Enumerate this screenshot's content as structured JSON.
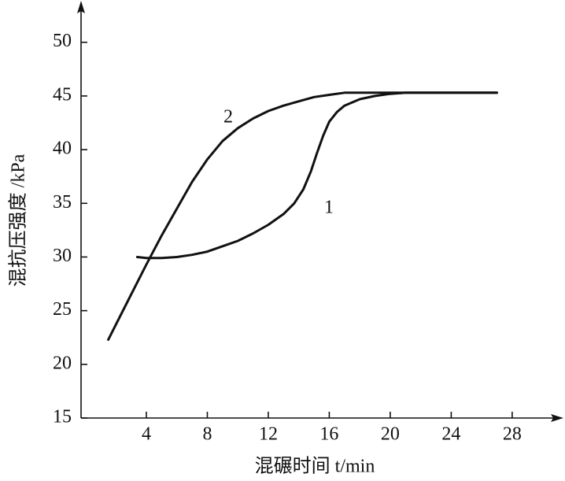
{
  "chart_data": {
    "type": "line",
    "ylabel": "混抗压强度 /kPa",
    "xlabel": "混碾时间 t/min",
    "xlim": [
      0,
      31
    ],
    "ylim": [
      15,
      53.5
    ],
    "xticks": [
      4,
      8,
      12,
      16,
      20,
      24,
      28
    ],
    "yticks": [
      15,
      20,
      25,
      30,
      35,
      40,
      45,
      50
    ],
    "series": [
      {
        "name": "1",
        "color": "#111111",
        "x": [
          3.4,
          4,
          5,
          6,
          7,
          8,
          9,
          10,
          11,
          12,
          13,
          13.7,
          14.3,
          14.8,
          15.2,
          15.6,
          16,
          16.5,
          17,
          18,
          19,
          20,
          21,
          22,
          24,
          27
        ],
        "values": [
          30,
          29.9,
          29.9,
          30,
          30.2,
          30.5,
          31,
          31.5,
          32.2,
          33,
          34,
          35,
          36.3,
          38,
          39.7,
          41.3,
          42.6,
          43.5,
          44.1,
          44.7,
          45.0,
          45.2,
          45.3,
          45.3,
          45.3,
          45.3
        ]
      },
      {
        "name": "2",
        "color": "#111111",
        "x": [
          1.5,
          2,
          3,
          4,
          5,
          6,
          7,
          8,
          9,
          10,
          11,
          12,
          13,
          14,
          15,
          16,
          17,
          20,
          24,
          27
        ],
        "values": [
          22.3,
          23.7,
          26.5,
          29.3,
          32,
          34.5,
          37,
          39.1,
          40.8,
          42,
          42.9,
          43.6,
          44.1,
          44.5,
          44.9,
          45.1,
          45.3,
          45.3,
          45.3,
          45.3
        ]
      }
    ]
  }
}
